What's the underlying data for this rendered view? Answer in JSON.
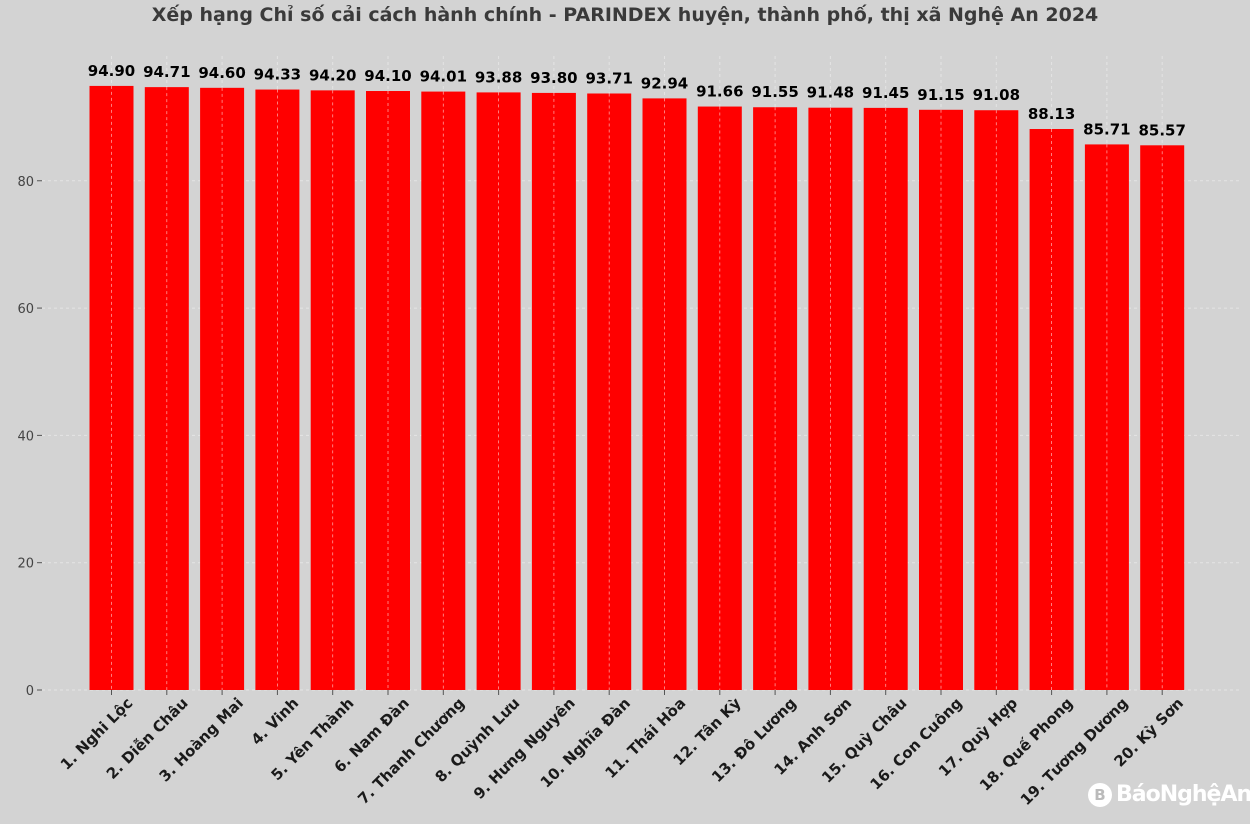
{
  "chart_data": {
    "type": "bar",
    "title": "Xếp hạng Chỉ số cải cách hành chính - PARINDEX huyện, thành phố, thị xã Nghệ An 2024",
    "xlabel": "",
    "ylabel": "",
    "categories": [
      "1. Nghi Lộc",
      "2. Diễn Châu",
      "3. Hoàng Mai",
      "4. Vinh",
      "5. Yên Thành",
      "6. Nam Đàn",
      "7. Thanh Chương",
      "8. Quỳnh Lưu",
      "9. Hưng Nguyên",
      "10. Nghĩa Đàn",
      "11. Thái Hòa",
      "12. Tân Kỳ",
      "13. Đô Lương",
      "14. Anh Sơn",
      "15. Quỳ Châu",
      "16. Con Cuông",
      "17. Quỳ Hợp",
      "18. Quế Phong",
      "19. Tương Dương",
      "20. Kỳ Sơn"
    ],
    "values": [
      94.9,
      94.71,
      94.6,
      94.33,
      94.2,
      94.1,
      94.01,
      93.88,
      93.8,
      93.71,
      92.94,
      91.66,
      91.55,
      91.48,
      91.45,
      91.15,
      91.08,
      88.13,
      85.71,
      85.57
    ],
    "value_labels": [
      "94.90",
      "94.71",
      "94.60",
      "94.33",
      "94.20",
      "94.10",
      "94.01",
      "93.88",
      "93.80",
      "93.71",
      "92.94",
      "91.66",
      "91.55",
      "91.48",
      "91.45",
      "91.15",
      "91.08",
      "88.13",
      "85.71",
      "85.57"
    ],
    "yticks": [
      0,
      20,
      40,
      60,
      80
    ],
    "ytick_labels": [
      "0",
      "20",
      "40",
      "60",
      "80"
    ],
    "ylim": [
      0,
      99.6
    ],
    "grid": true,
    "bar_color": "#ff0000",
    "background_color": "#d3d3d3"
  },
  "watermark": {
    "icon": "newspaper-logo-icon",
    "text": "BáoNghệAn"
  }
}
